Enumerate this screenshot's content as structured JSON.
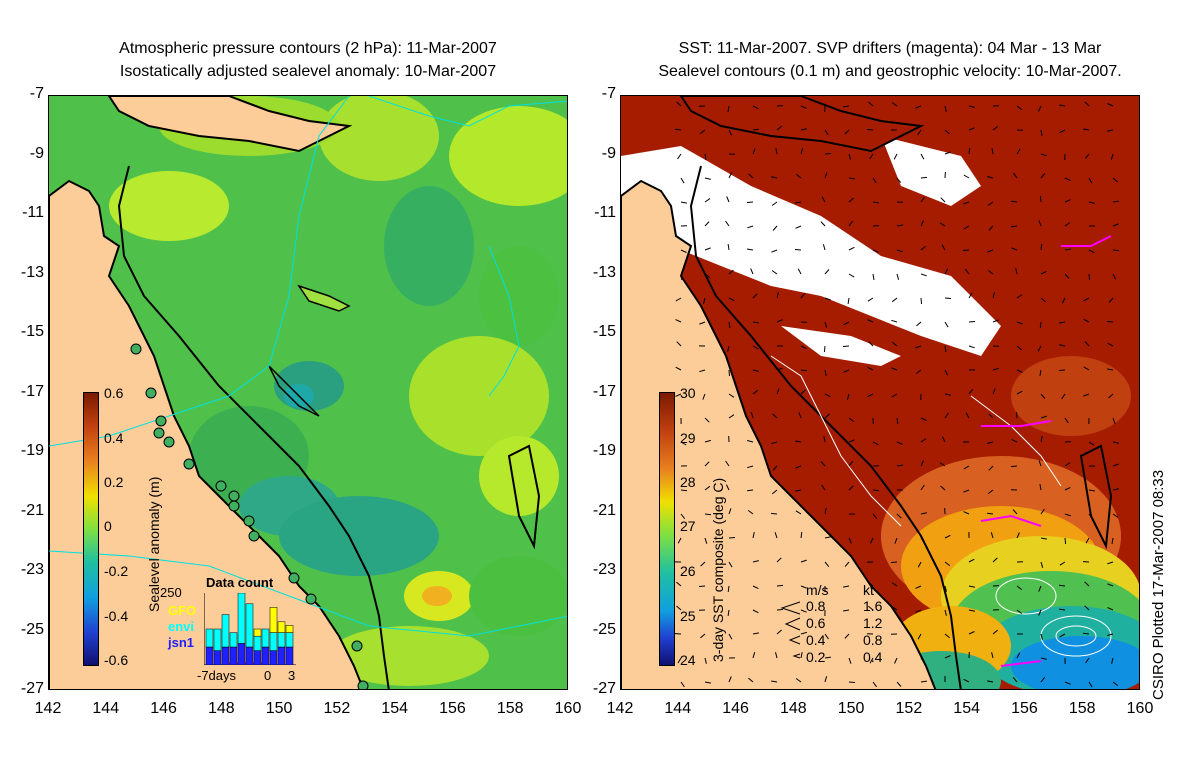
{
  "left_panel": {
    "title_line1": "Atmospheric pressure contours (2 hPa): 11-Mar-2007",
    "title_line2": "Isostatically adjusted sealevel anomaly: 10-Mar-2007",
    "colorbar_label": "Sealevel anomaly (m)",
    "colorbar_ticks": [
      "0.6",
      "0.4",
      "0.2",
      "0",
      "-0.2",
      "-0.4",
      "-0.6"
    ],
    "inset": {
      "title": "Data count",
      "ymax_label": "250",
      "legend": [
        {
          "label": "GFO",
          "color": "#ffff00"
        },
        {
          "label": "envi",
          "color": "#00ffff"
        },
        {
          "label": "jsn1",
          "color": "#2020ff"
        }
      ],
      "x_labels": [
        "-7days",
        "0",
        "3"
      ],
      "bars": [
        {
          "jsn1": 0.25,
          "envi": 0.25,
          "gfo": 0.0
        },
        {
          "jsn1": 0.2,
          "envi": 0.3,
          "gfo": 0.0
        },
        {
          "jsn1": 0.25,
          "envi": 0.45,
          "gfo": 0.0
        },
        {
          "jsn1": 0.25,
          "envi": 0.2,
          "gfo": 0.0
        },
        {
          "jsn1": 0.3,
          "envi": 0.7,
          "gfo": 0.0
        },
        {
          "jsn1": 0.25,
          "envi": 0.6,
          "gfo": 0.0
        },
        {
          "jsn1": 0.2,
          "envi": 0.2,
          "gfo": 0.1
        },
        {
          "jsn1": 0.25,
          "envi": 0.25,
          "gfo": 0.0
        },
        {
          "jsn1": 0.2,
          "envi": 0.25,
          "gfo": 0.35
        },
        {
          "jsn1": 0.25,
          "envi": 0.2,
          "gfo": 0.15
        },
        {
          "jsn1": 0.25,
          "envi": 0.2,
          "gfo": 0.1
        }
      ]
    }
  },
  "right_panel": {
    "title_line1": "SST: 11-Mar-2007. SVP drifters (magenta): 04 Mar - 13 Mar",
    "title_line2": "Sealevel contours (0.1 m) and geostrophic velocity: 10-Mar-2007.",
    "colorbar_label": "3-day SST composite (deg C)",
    "colorbar_ticks": [
      "30",
      "29",
      "28",
      "27",
      "26",
      "25",
      "24"
    ],
    "velocity_legend": {
      "header_ms": "m/s",
      "header_kt": "kt",
      "rows": [
        {
          "ms": "0.8",
          "kt": "1.6"
        },
        {
          "ms": "0.6",
          "kt": "1.2"
        },
        {
          "ms": "0.4",
          "kt": "0.8"
        },
        {
          "ms": "0.2",
          "kt": "0.4"
        }
      ]
    },
    "credit": "CSIRO Plotted 17-Mar-2007 08:33"
  },
  "axes": {
    "y_ticks": [
      "-7",
      "-9",
      "-11",
      "-13",
      "-15",
      "-17",
      "-19",
      "-21",
      "-23",
      "-25",
      "-27"
    ],
    "x_ticks": [
      "142",
      "144",
      "146",
      "148",
      "150",
      "152",
      "154",
      "156",
      "158",
      "160"
    ],
    "lon_range": [
      142,
      160
    ],
    "lat_range": [
      -27,
      -7
    ]
  },
  "colors": {
    "land": "#fccc99",
    "sla_background": "#4fc04a",
    "sst_background": "#a61c00",
    "cloud": "#ffffff",
    "drifter": "#ff00ff",
    "sla_contour": "#00e0e0"
  }
}
